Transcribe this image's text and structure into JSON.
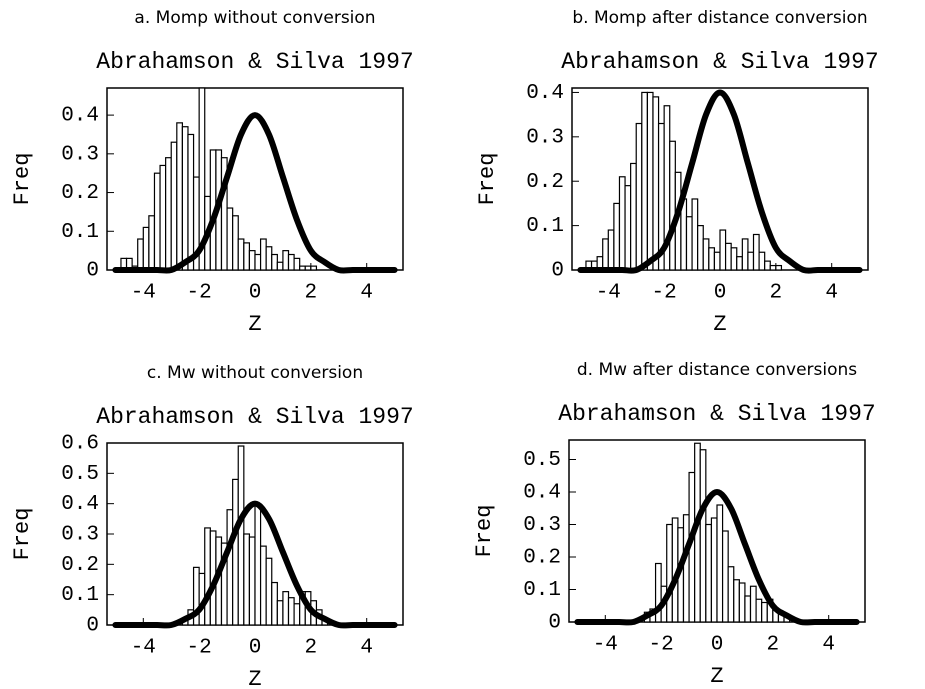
{
  "chart_data": [
    {
      "type": "histogram",
      "caption": "a. Momp without conversion",
      "title": "Abrahamson & Silva 1997",
      "x_label": "Z",
      "y_label": "Freq",
      "bins": [
        -4.8,
        -4.6,
        -4.4,
        -4.2,
        -4.0,
        -3.8,
        -3.6,
        -3.4,
        -3.2,
        -3.0,
        -2.8,
        -2.6,
        -2.4,
        -2.2,
        -2.0,
        -1.8,
        -1.6,
        -1.4,
        -1.2,
        -1.0,
        -0.8,
        -0.6,
        -0.4,
        -0.2,
        0.0,
        0.2,
        0.4,
        0.6,
        0.8,
        1.0,
        1.2,
        1.4,
        1.6,
        1.8,
        2.0,
        2.2
      ],
      "values": [
        0.03,
        0.03,
        0.01,
        0.08,
        0.11,
        0.14,
        0.25,
        0.27,
        0.29,
        0.33,
        0.38,
        0.37,
        0.35,
        0.24,
        0.47,
        0.19,
        0.31,
        0.31,
        0.29,
        0.16,
        0.14,
        0.08,
        0.07,
        0.05,
        0.04,
        0.08,
        0.06,
        0.04,
        0.02,
        0.05,
        0.04,
        0.03,
        0.01,
        0.01,
        0.01
      ],
      "line": {
        "x": [
          -5,
          -4.5,
          -4,
          -3.5,
          -3,
          -2.5,
          -2,
          -1.5,
          -1,
          -0.5,
          0,
          0.5,
          1,
          1.5,
          2,
          2.5,
          3,
          3.5,
          4,
          4.5,
          5
        ],
        "values": [
          0,
          0,
          0,
          0,
          0,
          0.02,
          0.05,
          0.13,
          0.24,
          0.35,
          0.4,
          0.35,
          0.24,
          0.13,
          0.05,
          0.02,
          0,
          0,
          0,
          0,
          0
        ]
      },
      "xlim": [
        -5.3,
        5.3
      ],
      "xticks": [
        -4,
        -2,
        0,
        2,
        4
      ],
      "ylim": [
        0,
        0.47
      ],
      "yticks": [
        0,
        0.1,
        0.2,
        0.3,
        0.4
      ]
    },
    {
      "type": "histogram",
      "caption": "b. Momp after distance conversion",
      "title": "Abrahamson & Silva 1997",
      "x_label": "Z",
      "y_label": "Freq",
      "bins": [
        -4.8,
        -4.6,
        -4.4,
        -4.2,
        -4.0,
        -3.8,
        -3.6,
        -3.4,
        -3.2,
        -3.0,
        -2.8,
        -2.6,
        -2.4,
        -2.2,
        -2.0,
        -1.8,
        -1.6,
        -1.4,
        -1.2,
        -1.0,
        -0.8,
        -0.6,
        -0.4,
        -0.2,
        0.0,
        0.2,
        0.4,
        0.6,
        0.8,
        1.0,
        1.2,
        1.4,
        1.6,
        1.8,
        2.0,
        2.2
      ],
      "values": [
        0.02,
        0.02,
        0.03,
        0.07,
        0.09,
        0.15,
        0.21,
        0.19,
        0.24,
        0.33,
        0.4,
        0.4,
        0.39,
        0.33,
        0.37,
        0.29,
        0.22,
        0.16,
        0.12,
        0.16,
        0.1,
        0.07,
        0.05,
        0.04,
        0.09,
        0.06,
        0.05,
        0.03,
        0.07,
        0.04,
        0.08,
        0.04,
        0.02,
        0.01,
        0.01
      ],
      "line": {
        "x": [
          -5,
          -4.5,
          -4,
          -3.5,
          -3,
          -2.5,
          -2,
          -1.5,
          -1,
          -0.5,
          0,
          0.5,
          1,
          1.5,
          2,
          2.5,
          3,
          3.5,
          4,
          4.5,
          5
        ],
        "values": [
          0,
          0,
          0,
          0,
          0,
          0.02,
          0.05,
          0.13,
          0.24,
          0.35,
          0.4,
          0.35,
          0.24,
          0.13,
          0.05,
          0.02,
          0,
          0,
          0,
          0,
          0
        ]
      },
      "xlim": [
        -5.3,
        5.3
      ],
      "xticks": [
        -4,
        -2,
        0,
        2,
        4
      ],
      "ylim": [
        0,
        0.41
      ],
      "yticks": [
        0,
        0.1,
        0.2,
        0.3,
        0.4
      ]
    },
    {
      "type": "histogram",
      "caption": "c. Mw without conversion",
      "title": "Abrahamson & Silva 1997",
      "x_label": "Z",
      "y_label": "Freq",
      "bins": [
        -2.6,
        -2.4,
        -2.2,
        -2.0,
        -1.8,
        -1.6,
        -1.4,
        -1.2,
        -1.0,
        -0.8,
        -0.6,
        -0.4,
        -0.2,
        0.0,
        0.2,
        0.4,
        0.6,
        0.8,
        1.0,
        1.2,
        1.4,
        1.6,
        1.8,
        2.0,
        2.2,
        2.4,
        2.6
      ],
      "values": [
        0.02,
        0.05,
        0.19,
        0.17,
        0.32,
        0.31,
        0.29,
        0.27,
        0.38,
        0.48,
        0.59,
        0.3,
        0.29,
        0.4,
        0.26,
        0.22,
        0.14,
        0.08,
        0.11,
        0.09,
        0.07,
        0.11,
        0.11,
        0.08,
        0.05,
        0.02
      ],
      "line": {
        "x": [
          -5,
          -4.5,
          -4,
          -3.5,
          -3,
          -2.5,
          -2,
          -1.5,
          -1,
          -0.5,
          0,
          0.5,
          1,
          1.5,
          2,
          2.5,
          3,
          3.5,
          4,
          4.5,
          5
        ],
        "values": [
          0,
          0,
          0,
          0,
          0,
          0.02,
          0.05,
          0.13,
          0.24,
          0.35,
          0.4,
          0.35,
          0.24,
          0.13,
          0.05,
          0.02,
          0,
          0,
          0,
          0,
          0
        ]
      },
      "xlim": [
        -5.3,
        5.3
      ],
      "xticks": [
        -4,
        -2,
        0,
        2,
        4
      ],
      "ylim": [
        0,
        0.6
      ],
      "yticks": [
        0,
        0.1,
        0.2,
        0.3,
        0.4,
        0.5,
        0.6
      ]
    },
    {
      "type": "histogram",
      "caption": "d. Mw after distance conversions",
      "title": "Abrahamson & Silva 1997",
      "x_label": "Z",
      "y_label": "Freq",
      "bins": [
        -2.6,
        -2.4,
        -2.2,
        -2.0,
        -1.8,
        -1.6,
        -1.4,
        -1.2,
        -1.0,
        -0.8,
        -0.6,
        -0.4,
        -0.2,
        0.0,
        0.2,
        0.4,
        0.6,
        0.8,
        1.0,
        1.2,
        1.4,
        1.6,
        1.8,
        2.0,
        2.2,
        2.4,
        2.6
      ],
      "values": [
        0.03,
        0.04,
        0.18,
        0.11,
        0.3,
        0.32,
        0.29,
        0.33,
        0.46,
        0.55,
        0.53,
        0.3,
        0.32,
        0.36,
        0.28,
        0.17,
        0.13,
        0.12,
        0.08,
        0.11,
        0.07,
        0.06,
        0.07,
        0.04,
        0.03,
        0.02
      ],
      "line": {
        "x": [
          -5,
          -4.5,
          -4,
          -3.5,
          -3,
          -2.5,
          -2,
          -1.5,
          -1,
          -0.5,
          0,
          0.5,
          1,
          1.5,
          2,
          2.5,
          3,
          3.5,
          4,
          4.5,
          5
        ],
        "values": [
          0,
          0,
          0,
          0,
          0,
          0.02,
          0.05,
          0.13,
          0.24,
          0.35,
          0.4,
          0.35,
          0.24,
          0.13,
          0.05,
          0.02,
          0,
          0,
          0,
          0,
          0
        ]
      },
      "xlim": [
        -5.3,
        5.3
      ],
      "xticks": [
        -4,
        -2,
        0,
        2,
        4
      ],
      "ylim": [
        0,
        0.56
      ],
      "yticks": [
        0,
        0.1,
        0.2,
        0.3,
        0.4,
        0.5
      ]
    }
  ]
}
